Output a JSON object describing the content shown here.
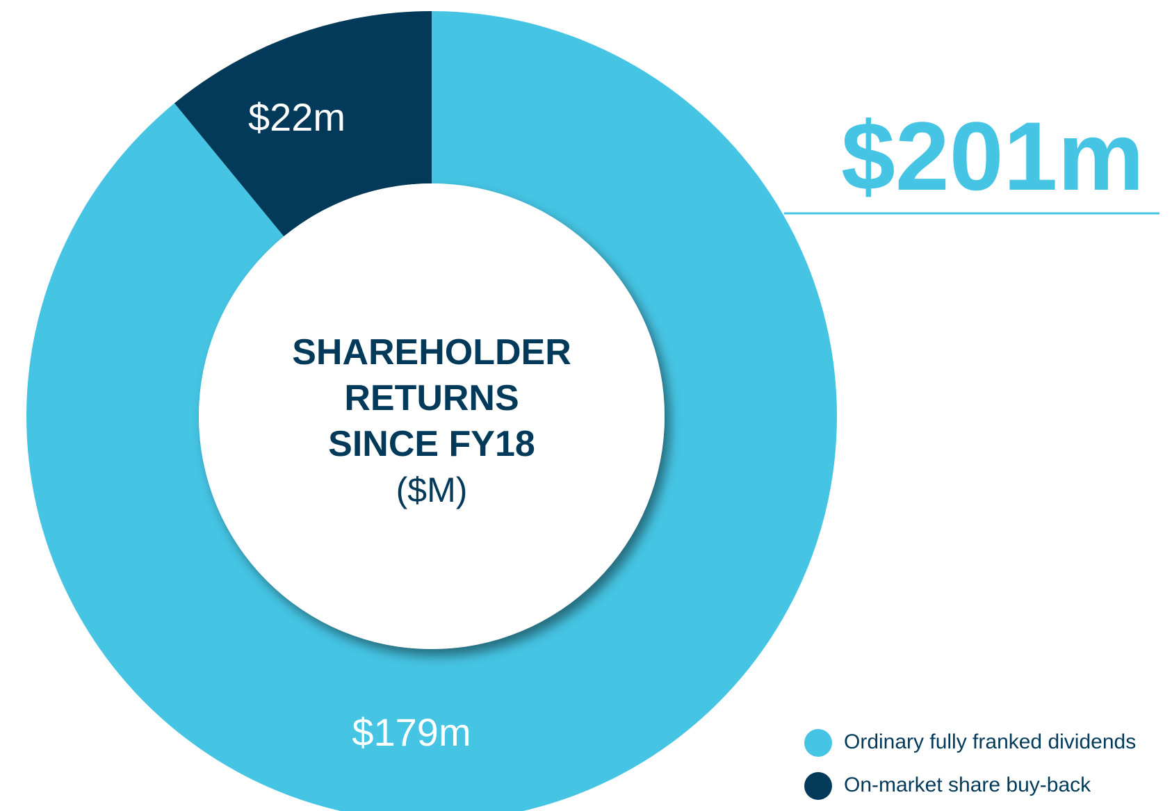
{
  "chart_data": {
    "type": "pie",
    "donut": true,
    "title": "SHAREHOLDER RETURNS SINCE FY18",
    "subtitle": "($M)",
    "total": {
      "value": 201,
      "label": "$201m"
    },
    "categories": [
      "Ordinary fully franked dividends",
      "On-market share buy-back"
    ],
    "values": [
      179,
      22
    ],
    "value_labels": [
      "$179m",
      "$22m"
    ],
    "colors": [
      "#45c4e3",
      "#033a5a"
    ]
  }
}
